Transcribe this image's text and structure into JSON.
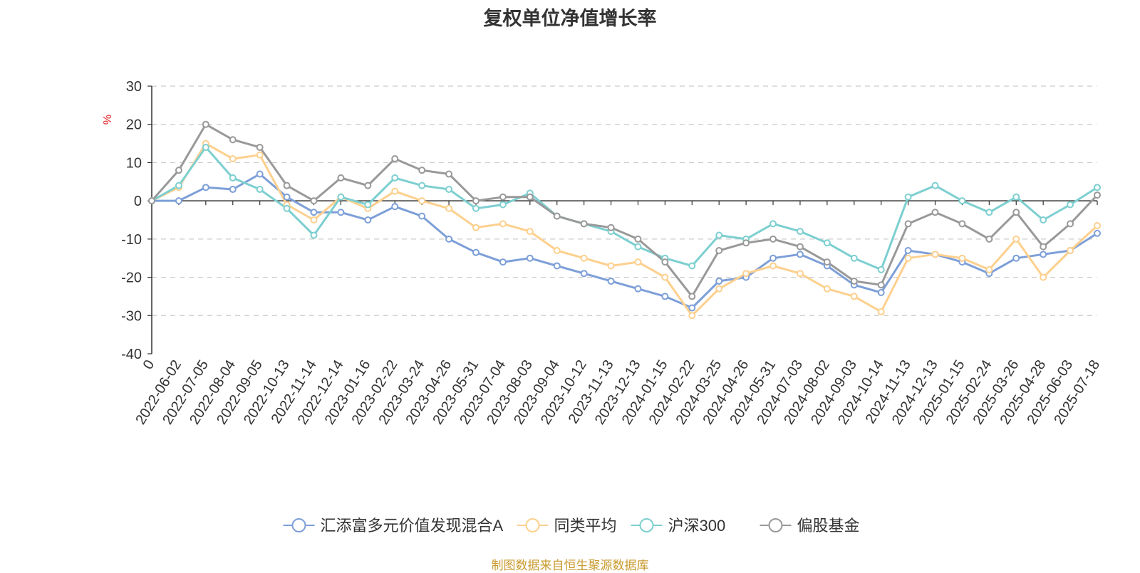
{
  "title": "复权单位净值增长率",
  "footer": "制图数据来自恒生聚源数据库",
  "chart_data": {
    "type": "line",
    "title": "复权单位净值增长率",
    "ylabel": "%",
    "ylim": [
      -40,
      30
    ],
    "yticks": [
      30,
      20,
      10,
      0,
      -10,
      -20,
      -30,
      -40
    ],
    "x_labels": [
      "0",
      "2022-06-02",
      "2022-07-05",
      "2022-08-04",
      "2022-09-05",
      "2022-10-13",
      "2022-11-14",
      "2022-12-14",
      "2023-01-16",
      "2023-02-22",
      "2023-03-24",
      "2023-04-26",
      "2023-05-31",
      "2023-07-04",
      "2023-08-03",
      "2023-09-04",
      "2023-10-12",
      "2023-11-13",
      "2023-12-13",
      "2024-01-15",
      "2024-02-22",
      "2024-03-25",
      "2024-04-26",
      "2024-05-31",
      "2024-07-03",
      "2024-08-02",
      "2024-09-03",
      "2024-10-14",
      "2024-11-13",
      "2024-12-13",
      "2025-01-15",
      "2025-02-24",
      "2025-03-26",
      "2025-04-28",
      "2025-06-03",
      "2025-07-18"
    ],
    "grid": "horizontal-dashed",
    "legend_position": "bottom",
    "series": [
      {
        "name": "汇添富多元价值发现混合A",
        "color": "#7d9fd8",
        "values": [
          0,
          0,
          3.5,
          3,
          7,
          1,
          -3,
          -3,
          -5,
          -1.5,
          -4,
          -10,
          -13.5,
          -16,
          -15,
          -17,
          -19,
          -21,
          -23,
          -25,
          -28,
          -21,
          -20,
          -15,
          -14,
          -17,
          -22,
          -24,
          -13,
          -14,
          -16,
          -19,
          -15,
          -14,
          -13,
          -8.5
        ]
      },
      {
        "name": "同类平均",
        "color": "#fdd08e",
        "values": [
          0,
          3.5,
          15,
          11,
          12,
          -1,
          -5,
          1,
          -2,
          2.5,
          0,
          -2,
          -7,
          -6,
          -8,
          -13,
          -15,
          -17,
          -16,
          -20,
          -30,
          -23,
          -19,
          -17,
          -19,
          -23,
          -25,
          -29,
          -15,
          -14,
          -15,
          -18,
          -10,
          -20,
          -13,
          -6.5
        ]
      },
      {
        "name": "沪深300",
        "color": "#7dcfd0",
        "values": [
          0,
          4,
          14,
          6,
          3,
          -2,
          -9,
          1,
          -1,
          6,
          4,
          3,
          -2,
          -1,
          2,
          -4,
          -6,
          -8,
          -12,
          -15,
          -17,
          -9,
          -10,
          -6,
          -8,
          -11,
          -15,
          -18,
          1,
          4,
          0,
          -3,
          1,
          -5,
          -1,
          3.5
        ]
      },
      {
        "name": "偏股基金",
        "color": "#999999",
        "values": [
          0,
          8,
          20,
          16,
          14,
          4,
          0,
          6,
          4,
          11,
          8,
          7,
          0,
          1,
          1,
          -4,
          -6,
          -7,
          -10,
          -16,
          -25,
          -13,
          -11,
          -10,
          -12,
          -16,
          -21,
          -22,
          -6,
          -3,
          -6,
          -10,
          -3,
          -12,
          -6,
          1.5
        ]
      }
    ]
  }
}
